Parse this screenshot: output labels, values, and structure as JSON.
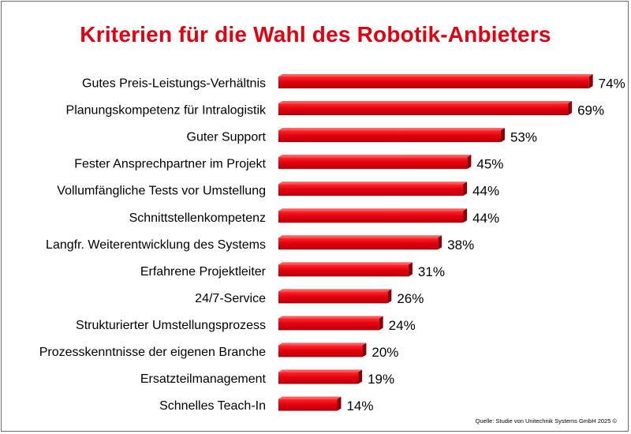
{
  "chart_data": {
    "type": "bar",
    "orientation": "horizontal",
    "title": "Kriterien für die Wahl des Robotik-Anbieters",
    "categories": [
      "Gutes Preis-Leistungs-Verhältnis",
      "Planungskompetenz für Intralogistik",
      "Guter Support",
      "Fester Ansprechpartner im Projekt",
      "Vollumfängliche Tests vor Umstellung",
      "Schnittstellenkompetenz",
      "Langfr. Weiterentwicklung des Systems",
      "Erfahrene Projektleiter",
      "24/7-Service",
      "Strukturierter Umstellungsprozess",
      "Prozesskenntnisse der eigenen Branche",
      "Ersatzteilmanagement",
      "Schnelles Teach-In"
    ],
    "values": [
      74,
      69,
      53,
      45,
      44,
      44,
      38,
      31,
      26,
      24,
      20,
      19,
      14
    ],
    "value_labels": [
      "74%",
      "69%",
      "53%",
      "45%",
      "44%",
      "44%",
      "38%",
      "31%",
      "26%",
      "24%",
      "20%",
      "19%",
      "14%"
    ],
    "unit": "%",
    "xlim": [
      0,
      80
    ],
    "grid": false,
    "bar_color": "#e3000f",
    "source": "Quelle: Studie von Unitechnik Systems GmbH 2025 ©"
  }
}
